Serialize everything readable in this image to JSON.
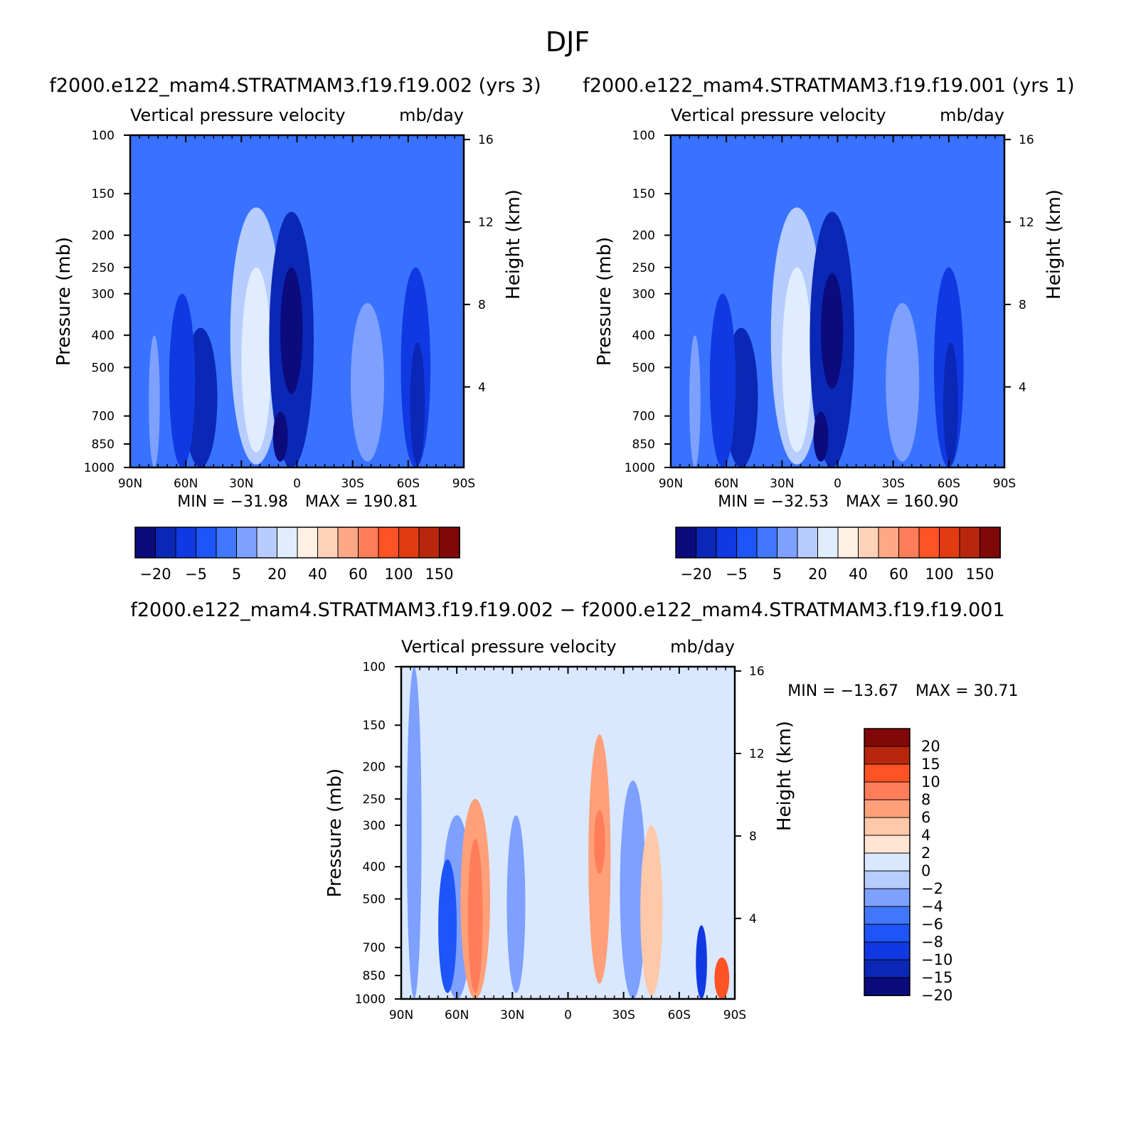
{
  "page_title": "DJF",
  "chart_data": [
    {
      "type": "heatmap",
      "id": "panel-case",
      "title": "f2000.e122_mam4.STRATMAM3.f19.f19.002 (yrs 3)",
      "subtitle_left": "Vertical pressure velocity",
      "subtitle_right": "mb/day",
      "ylabel": "Pressure (mb)",
      "ylabel_right": "Height (km)",
      "x_ticks": [
        "90N",
        "60N",
        "30N",
        "0",
        "30S",
        "60S",
        "90S"
      ],
      "x_range": [
        90,
        -90
      ],
      "y_ticks": [
        100,
        150,
        200,
        250,
        300,
        400,
        500,
        700,
        850,
        1000
      ],
      "y_range": [
        100,
        1000
      ],
      "y_scale": "log",
      "height_ticks": [
        4,
        8,
        12,
        16
      ],
      "min_label": "MIN = −31.98",
      "max_label": "MAX = 190.81",
      "min": -31.98,
      "max": 190.81,
      "levels": [
        -30,
        -20,
        -10,
        -5,
        0,
        5,
        10,
        20,
        30,
        40,
        50,
        60,
        80,
        100,
        120,
        150
      ],
      "colorbar_labels": [
        "−20",
        "−5",
        "5",
        "20",
        "40",
        "60",
        "100",
        "150"
      ],
      "colorbar_orientation": "horizontal",
      "features": [
        {
          "lat": 52,
          "width": 9,
          "p_top": 380,
          "p_bot": 1000,
          "class": 1
        },
        {
          "lat": 62,
          "width": 7,
          "p_top": 300,
          "p_bot": 1000,
          "class": 2
        },
        {
          "lat": 22,
          "width": 14,
          "p_top": 165,
          "p_bot": 980,
          "class": 6
        },
        {
          "lat": 22,
          "width": 8,
          "p_top": 250,
          "p_bot": 900,
          "class": 7
        },
        {
          "lat": 3,
          "width": 12,
          "p_top": 170,
          "p_bot": 1000,
          "class": 1
        },
        {
          "lat": 3,
          "width": 6,
          "p_top": 250,
          "p_bot": 600,
          "class": 0
        },
        {
          "lat": 9,
          "width": 4,
          "p_top": 680,
          "p_bot": 960,
          "class": 0
        },
        {
          "lat": -38,
          "width": 9,
          "p_top": 320,
          "p_bot": 960,
          "class": 5
        },
        {
          "lat": -64,
          "width": 8,
          "p_top": 250,
          "p_bot": 1000,
          "class": 2
        },
        {
          "lat": -65,
          "width": 4,
          "p_top": 420,
          "p_bot": 980,
          "class": 1
        },
        {
          "lat": 77,
          "width": 3,
          "p_top": 400,
          "p_bot": 1000,
          "class": 5
        }
      ]
    },
    {
      "type": "heatmap",
      "id": "panel-control",
      "title": "f2000.e122_mam4.STRATMAM3.f19.f19.001 (yrs 1)",
      "subtitle_left": "Vertical pressure velocity",
      "subtitle_right": "mb/day",
      "ylabel": "Pressure (mb)",
      "ylabel_right": "Height (km)",
      "x_ticks": [
        "90N",
        "60N",
        "30N",
        "0",
        "30S",
        "60S",
        "90S"
      ],
      "x_range": [
        90,
        -90
      ],
      "y_ticks": [
        100,
        150,
        200,
        250,
        300,
        400,
        500,
        700,
        850,
        1000
      ],
      "y_range": [
        100,
        1000
      ],
      "y_scale": "log",
      "height_ticks": [
        4,
        8,
        12,
        16
      ],
      "min_label": "MIN = −32.53",
      "max_label": "MAX = 160.90",
      "min": -32.53,
      "max": 160.9,
      "levels": [
        -30,
        -20,
        -10,
        -5,
        0,
        5,
        10,
        20,
        30,
        40,
        50,
        60,
        80,
        100,
        120,
        150
      ],
      "colorbar_labels": [
        "−20",
        "−5",
        "5",
        "20",
        "40",
        "60",
        "100",
        "150"
      ],
      "colorbar_orientation": "horizontal",
      "features": [
        {
          "lat": 52,
          "width": 9,
          "p_top": 380,
          "p_bot": 1000,
          "class": 1
        },
        {
          "lat": 62,
          "width": 7,
          "p_top": 300,
          "p_bot": 1000,
          "class": 2
        },
        {
          "lat": 22,
          "width": 14,
          "p_top": 165,
          "p_bot": 980,
          "class": 6
        },
        {
          "lat": 22,
          "width": 8,
          "p_top": 250,
          "p_bot": 900,
          "class": 7
        },
        {
          "lat": 3,
          "width": 12,
          "p_top": 170,
          "p_bot": 1000,
          "class": 1
        },
        {
          "lat": 3,
          "width": 6,
          "p_top": 260,
          "p_bot": 580,
          "class": 0
        },
        {
          "lat": 9,
          "width": 4,
          "p_top": 680,
          "p_bot": 960,
          "class": 0
        },
        {
          "lat": -35,
          "width": 9,
          "p_top": 320,
          "p_bot": 960,
          "class": 5
        },
        {
          "lat": -60,
          "width": 8,
          "p_top": 250,
          "p_bot": 1000,
          "class": 2
        },
        {
          "lat": -61,
          "width": 4,
          "p_top": 420,
          "p_bot": 980,
          "class": 1
        },
        {
          "lat": 77,
          "width": 3,
          "p_top": 400,
          "p_bot": 1000,
          "class": 5
        }
      ]
    },
    {
      "type": "heatmap",
      "id": "panel-diff",
      "title": "f2000.e122_mam4.STRATMAM3.f19.f19.002 − f2000.e122_mam4.STRATMAM3.f19.f19.001",
      "subtitle_left": "Vertical pressure velocity",
      "subtitle_right": "mb/day",
      "ylabel": "Pressure (mb)",
      "ylabel_right": "Height (km)",
      "x_ticks": [
        "90N",
        "60N",
        "30N",
        "0",
        "30S",
        "60S",
        "90S"
      ],
      "x_range": [
        90,
        -90
      ],
      "y_ticks": [
        100,
        150,
        200,
        250,
        300,
        400,
        500,
        700,
        850,
        1000
      ],
      "y_range": [
        100,
        1000
      ],
      "y_scale": "log",
      "height_ticks": [
        4,
        8,
        12,
        16
      ],
      "min_label": "MIN = −13.67",
      "max_label": "MAX =   30.71",
      "min": -13.67,
      "max": 30.71,
      "levels": [
        -20,
        -15,
        -10,
        -8,
        -6,
        -4,
        -2,
        0,
        2,
        4,
        6,
        8,
        10,
        15,
        20
      ],
      "colorbar_labels": [
        "20",
        "15",
        "10",
        "8",
        "6",
        "4",
        "2",
        "0",
        "−2",
        "−4",
        "−6",
        "−8",
        "−10",
        "−15",
        "−20"
      ],
      "colorbar_orientation": "vertical",
      "features": [
        {
          "lat": 60,
          "width": 8,
          "p_top": 280,
          "p_bot": 1000,
          "class": 5
        },
        {
          "lat": 65,
          "width": 5,
          "p_top": 380,
          "p_bot": 960,
          "class": 3
        },
        {
          "lat": 83,
          "width": 4,
          "p_top": 100,
          "p_bot": 1000,
          "class": 5
        },
        {
          "lat": 50,
          "width": 8,
          "p_top": 250,
          "p_bot": 1000,
          "class": 10
        },
        {
          "lat": 50,
          "width": 4,
          "p_top": 330,
          "p_bot": 960,
          "class": 11
        },
        {
          "lat": 28,
          "width": 5,
          "p_top": 280,
          "p_bot": 960,
          "class": 5
        },
        {
          "lat": -17,
          "width": 6,
          "p_top": 160,
          "p_bot": 900,
          "class": 10
        },
        {
          "lat": -17,
          "width": 3,
          "p_top": 270,
          "p_bot": 420,
          "class": 11
        },
        {
          "lat": -35,
          "width": 7,
          "p_top": 220,
          "p_bot": 1000,
          "class": 5
        },
        {
          "lat": -45,
          "width": 6,
          "p_top": 300,
          "p_bot": 980,
          "class": 9
        },
        {
          "lat": -72,
          "width": 3,
          "p_top": 600,
          "p_bot": 1000,
          "class": 2
        },
        {
          "lat": -83,
          "width": 4,
          "p_top": 750,
          "p_bot": 1000,
          "class": 12
        }
      ]
    }
  ],
  "colors": {
    "abs_palette": [
      "#0b0b7e",
      "#0a27b5",
      "#1139e3",
      "#1d55f8",
      "#4178ff",
      "#7ea0ff",
      "#b7ccff",
      "#e0edff",
      "#fff0e3",
      "#ffd2b9",
      "#ffa885",
      "#ff7d58",
      "#ff5225",
      "#e23a11",
      "#b8270b",
      "#800808"
    ],
    "abs_background": "#3872ff",
    "diff_palette": [
      "#0b0b7e",
      "#0a27b5",
      "#1139e3",
      "#1d55f8",
      "#4178ff",
      "#7ea0ff",
      "#b7ccff",
      "#d9e8ff",
      "#ffe5d2",
      "#ffc8a8",
      "#ffa07a",
      "#ff7d58",
      "#ff5225",
      "#b8270b",
      "#800808"
    ],
    "diff_background": "#d9e8ff"
  }
}
